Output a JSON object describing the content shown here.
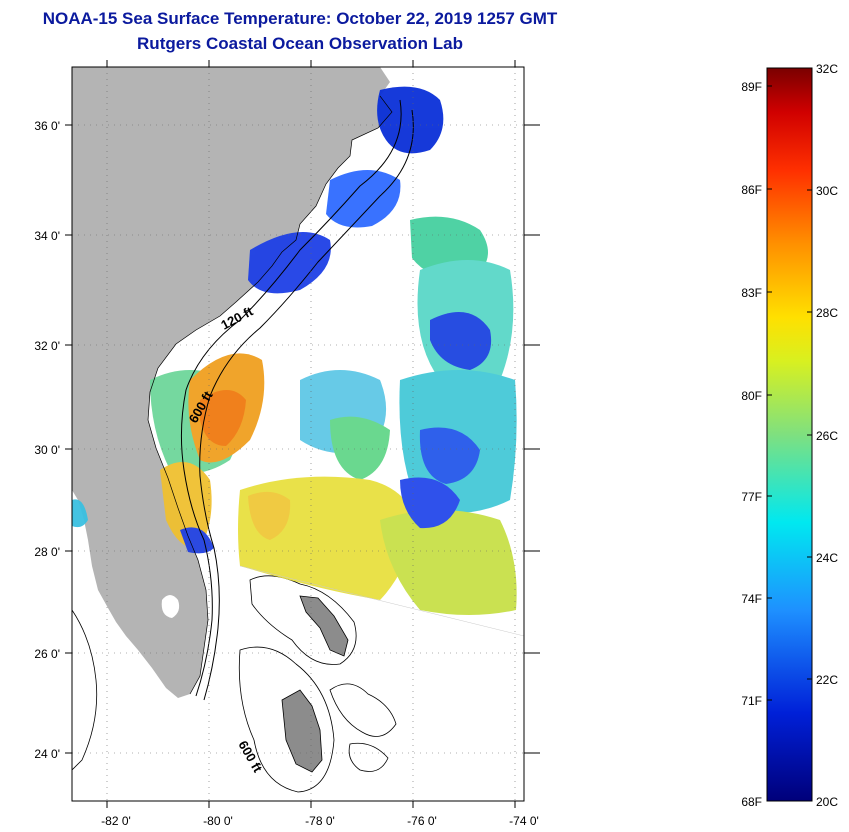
{
  "title": {
    "line1": "NOAA-15 Sea Surface Temperature:  October 22, 2019 1257 GMT",
    "line2": "Rutgers Coastal Ocean Observation Lab"
  },
  "map": {
    "x_axis": {
      "ticks": [
        "-82 0'",
        "-80 0'",
        "-78 0'",
        "-76 0'",
        "-74 0'"
      ]
    },
    "y_axis": {
      "ticks": [
        "36 0'",
        "34 0'",
        "32 0'",
        "30 0'",
        "28 0'",
        "26 0'",
        "24 0'"
      ]
    },
    "contour_labels": {
      "c1": "120 ft",
      "c2": "600 ft",
      "c3": "600 ft"
    }
  },
  "colorbar": {
    "fahrenheit": [
      "89F",
      "86F",
      "83F",
      "80F",
      "77F",
      "74F",
      "71F",
      "68F"
    ],
    "celsius": [
      "32C",
      "30C",
      "28C",
      "26C",
      "24C",
      "22C",
      "20C"
    ]
  },
  "colors": {
    "land": "#b4b4b4",
    "title": "#0b1a9e"
  }
}
